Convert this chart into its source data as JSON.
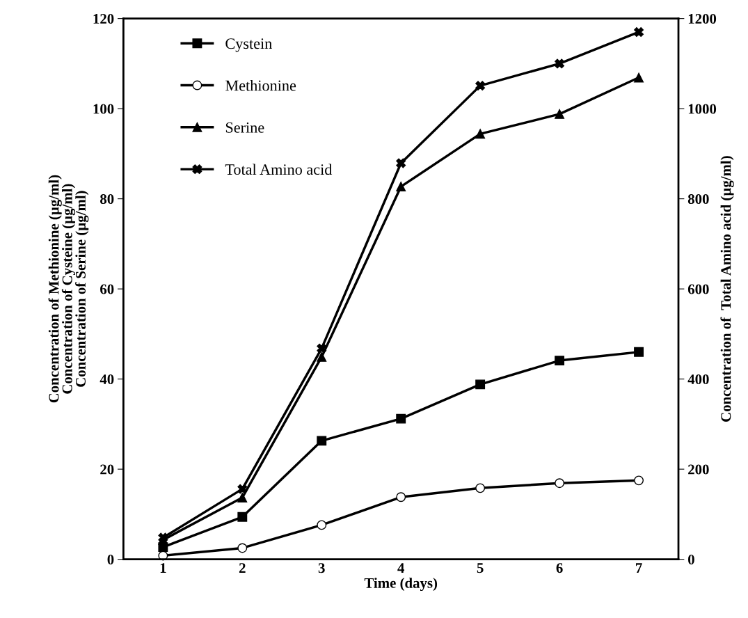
{
  "chart_data": {
    "type": "line",
    "xlabel": "Time (days)",
    "ylabel": "Concentration of Methionine (µg/ml)\nConcentration of Cysteine (µg/ml)\nConcentration of Serine (µg/ml)",
    "y2label": "Concentration of  Total Amino acid (µg/ml)",
    "categories": [
      "1",
      "2",
      "3",
      "4",
      "5",
      "6",
      "7"
    ],
    "series": [
      {
        "name": "Cystein",
        "color": "#000000",
        "marker": "square",
        "values": [
          2.7,
          9.4,
          26.3,
          31.2,
          38.8,
          44.1,
          46.0
        ]
      },
      {
        "name": "Methionine",
        "color": "#000000",
        "marker": "circle",
        "values": [
          0.8,
          2.5,
          7.6,
          13.8,
          15.8,
          16.9,
          17.5
        ]
      },
      {
        "name": "Serine",
        "color": "#000000",
        "marker": "triangle",
        "values": [
          4.3,
          13.7,
          44.9,
          82.7,
          94.4,
          98.8,
          106.9
        ]
      },
      {
        "name": "Total Amino acid",
        "color": "#000000",
        "marker": "cross",
        "axis": "y2",
        "values": [
          48,
          156,
          468,
          879,
          1051,
          1100,
          1170
        ]
      }
    ],
    "ylim": [
      0,
      120
    ],
    "yticks": [
      0,
      20,
      40,
      60,
      80,
      100,
      120
    ],
    "y2lim": [
      0,
      1200
    ],
    "y2ticks": [
      0,
      200,
      400,
      600,
      800,
      1000,
      1200
    ],
    "grid": false,
    "legend": "top left",
    "line_style": "solid"
  }
}
